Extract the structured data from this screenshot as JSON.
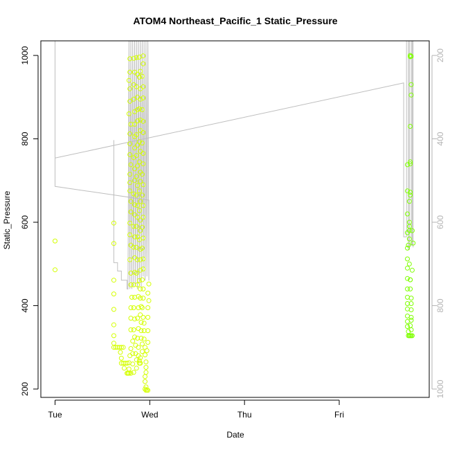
{
  "chart_data": {
    "type": "scatter",
    "title": "ATOM4 Northeast_Pacific_1 Static_Pressure",
    "xlabel": "Date",
    "ylabel": "Static_Pressure",
    "x_tick_labels": [
      "Tue",
      "Wed",
      "Thu",
      "Fri"
    ],
    "x_ticks_days": [
      0,
      1,
      2,
      3
    ],
    "xlim_days": [
      -0.15,
      3.95
    ],
    "ylim": [
      180,
      1035
    ],
    "y_ticks": [
      200,
      400,
      600,
      800,
      1000
    ],
    "y2_ticks": [
      200,
      400,
      600,
      800,
      1000
    ],
    "y2_reversed": true,
    "grid": false,
    "colors": {
      "point_early": "#d4ff00",
      "point_late": "#7fff00",
      "depth_line": "#bebebe",
      "right_axis": "#b3b3b3"
    },
    "series": [
      {
        "points": [
          [
            0.0,
            555
          ],
          [
            0.0,
            486
          ],
          [
            0.62,
            598
          ],
          [
            0.62,
            549
          ],
          [
            0.62,
            461
          ],
          [
            0.62,
            428
          ],
          [
            0.62,
            391
          ],
          [
            0.62,
            354
          ],
          [
            0.62,
            328
          ],
          [
            0.62,
            310
          ],
          [
            0.62,
            300
          ],
          [
            0.64,
            300
          ],
          [
            0.66,
            300
          ],
          [
            0.68,
            300
          ],
          [
            0.7,
            300
          ],
          [
            0.72,
            300
          ],
          [
            0.69,
            288
          ],
          [
            0.7,
            274
          ],
          [
            0.7,
            262
          ],
          [
            0.72,
            262
          ],
          [
            0.74,
            262
          ],
          [
            0.76,
            262
          ],
          [
            0.73,
            250
          ],
          [
            0.76,
            238
          ],
          [
            0.77,
            238
          ],
          [
            0.78,
            238
          ],
          [
            0.8,
            238
          ],
          [
            0.78,
            248
          ],
          [
            0.78,
            263
          ],
          [
            0.79,
            280
          ],
          [
            0.8,
            297
          ],
          [
            0.79,
            992
          ],
          [
            0.79,
            960
          ],
          [
            0.78,
            940
          ],
          [
            0.79,
            920
          ],
          [
            0.79,
            890
          ],
          [
            0.78,
            860
          ],
          [
            0.8,
            835
          ],
          [
            0.79,
            812
          ],
          [
            0.79,
            788
          ],
          [
            0.79,
            762
          ],
          [
            0.8,
            738
          ],
          [
            0.79,
            715
          ],
          [
            0.79,
            695
          ],
          [
            0.79,
            675
          ],
          [
            0.8,
            650
          ],
          [
            0.8,
            625
          ],
          [
            0.79,
            598
          ],
          [
            0.79,
            570
          ],
          [
            0.8,
            545
          ],
          [
            0.79,
            510
          ],
          [
            0.8,
            478
          ],
          [
            0.8,
            450
          ],
          [
            0.81,
            420
          ],
          [
            0.8,
            395
          ],
          [
            0.8,
            370
          ],
          [
            0.8,
            342
          ],
          [
            0.82,
            315
          ],
          [
            0.82,
            285
          ],
          [
            0.82,
            260
          ],
          [
            0.83,
            240
          ],
          [
            0.83,
            993
          ],
          [
            0.84,
            960
          ],
          [
            0.83,
            930
          ],
          [
            0.83,
            895
          ],
          [
            0.84,
            865
          ],
          [
            0.84,
            835
          ],
          [
            0.84,
            805
          ],
          [
            0.84,
            778
          ],
          [
            0.83,
            755
          ],
          [
            0.84,
            728
          ],
          [
            0.84,
            700
          ],
          [
            0.83,
            668
          ],
          [
            0.84,
            642
          ],
          [
            0.84,
            618
          ],
          [
            0.83,
            590
          ],
          [
            0.84,
            565
          ],
          [
            0.83,
            540
          ],
          [
            0.84,
            515
          ],
          [
            0.84,
            480
          ],
          [
            0.83,
            450
          ],
          [
            0.84,
            420
          ],
          [
            0.83,
            395
          ],
          [
            0.84,
            368
          ],
          [
            0.83,
            342
          ],
          [
            0.84,
            325
          ],
          [
            0.85,
            305
          ],
          [
            0.85,
            285
          ],
          [
            0.86,
            270
          ],
          [
            0.86,
            250
          ],
          [
            0.86,
            995
          ],
          [
            0.87,
            955
          ],
          [
            0.86,
            925
          ],
          [
            0.87,
            900
          ],
          [
            0.87,
            870
          ],
          [
            0.87,
            843
          ],
          [
            0.86,
            810
          ],
          [
            0.87,
            785
          ],
          [
            0.86,
            760
          ],
          [
            0.87,
            735
          ],
          [
            0.86,
            710
          ],
          [
            0.87,
            688
          ],
          [
            0.86,
            665
          ],
          [
            0.87,
            640
          ],
          [
            0.87,
            612
          ],
          [
            0.86,
            590
          ],
          [
            0.87,
            565
          ],
          [
            0.86,
            540
          ],
          [
            0.87,
            510
          ],
          [
            0.86,
            478
          ],
          [
            0.87,
            450
          ],
          [
            0.88,
            422
          ],
          [
            0.88,
            395
          ],
          [
            0.87,
            370
          ],
          [
            0.88,
            345
          ],
          [
            0.87,
            322
          ],
          [
            0.88,
            300
          ],
          [
            0.88,
            280
          ],
          [
            0.89,
            268
          ],
          [
            0.89,
            262
          ],
          [
            0.9,
            262
          ],
          [
            0.9,
            275
          ],
          [
            0.89,
            996
          ],
          [
            0.9,
            962
          ],
          [
            0.89,
            948
          ],
          [
            0.9,
            920
          ],
          [
            0.9,
            895
          ],
          [
            0.89,
            872
          ],
          [
            0.9,
            845
          ],
          [
            0.9,
            820
          ],
          [
            0.89,
            793
          ],
          [
            0.9,
            770
          ],
          [
            0.89,
            745
          ],
          [
            0.9,
            720
          ],
          [
            0.9,
            698
          ],
          [
            0.89,
            675
          ],
          [
            0.9,
            650
          ],
          [
            0.89,
            628
          ],
          [
            0.9,
            605
          ],
          [
            0.9,
            580
          ],
          [
            0.89,
            558
          ],
          [
            0.9,
            535
          ],
          [
            0.9,
            510
          ],
          [
            0.9,
            485
          ],
          [
            0.89,
            460
          ],
          [
            0.9,
            440
          ],
          [
            0.9,
            418
          ],
          [
            0.91,
            398
          ],
          [
            0.9,
            378
          ],
          [
            0.91,
            360
          ],
          [
            0.91,
            340
          ],
          [
            0.91,
            322
          ],
          [
            0.92,
            308
          ],
          [
            0.92,
            290
          ],
          [
            0.93,
            999
          ],
          [
            0.93,
            980
          ],
          [
            0.92,
            950
          ],
          [
            0.93,
            925
          ],
          [
            0.93,
            898
          ],
          [
            0.92,
            870
          ],
          [
            0.93,
            842
          ],
          [
            0.93,
            815
          ],
          [
            0.92,
            790
          ],
          [
            0.93,
            765
          ],
          [
            0.93,
            740
          ],
          [
            0.92,
            715
          ],
          [
            0.93,
            690
          ],
          [
            0.92,
            665
          ],
          [
            0.93,
            640
          ],
          [
            0.93,
            612
          ],
          [
            0.92,
            588
          ],
          [
            0.93,
            562
          ],
          [
            0.92,
            538
          ],
          [
            0.93,
            512
          ],
          [
            0.93,
            488
          ],
          [
            0.92,
            462
          ],
          [
            0.93,
            440
          ],
          [
            0.93,
            418
          ],
          [
            0.92,
            395
          ],
          [
            0.93,
            372
          ],
          [
            0.94,
            358
          ],
          [
            0.94,
            340
          ],
          [
            0.94,
            320
          ],
          [
            0.95,
            300
          ],
          [
            0.95,
            282
          ],
          [
            0.96,
            265
          ],
          [
            0.96,
            252
          ],
          [
            0.96,
            240
          ],
          [
            0.95,
            230
          ],
          [
            0.95,
            218
          ],
          [
            0.96,
            205
          ],
          [
            0.95,
            200
          ],
          [
            0.97,
            198
          ],
          [
            0.98,
            197
          ],
          [
            0.96,
            197
          ],
          [
            0.97,
            292
          ],
          [
            0.98,
            312
          ],
          [
            0.98,
            340
          ],
          [
            0.98,
            372
          ],
          [
            0.98,
            395
          ],
          [
            0.99,
            412
          ],
          [
            0.98,
            430
          ],
          [
            0.99,
            452
          ]
        ]
      },
      {
        "points": [
          [
            3.72,
            738
          ],
          [
            3.72,
            675
          ],
          [
            3.72,
            620
          ],
          [
            3.72,
            575
          ],
          [
            3.72,
            538
          ],
          [
            3.72,
            512
          ],
          [
            3.72,
            490
          ],
          [
            3.72,
            465
          ],
          [
            3.72,
            440
          ],
          [
            3.72,
            420
          ],
          [
            3.72,
            405
          ],
          [
            3.72,
            392
          ],
          [
            3.72,
            375
          ],
          [
            3.72,
            362
          ],
          [
            3.72,
            350
          ],
          [
            3.73,
            338
          ],
          [
            3.73,
            328
          ],
          [
            3.74,
            328
          ],
          [
            3.75,
            328
          ],
          [
            3.76,
            328
          ],
          [
            3.77,
            328
          ],
          [
            3.73,
            545
          ],
          [
            3.74,
            560
          ],
          [
            3.74,
            580
          ],
          [
            3.74,
            590
          ],
          [
            3.74,
            600
          ],
          [
            3.74,
            650
          ],
          [
            3.75,
            665
          ],
          [
            3.75,
            672
          ],
          [
            3.75,
            740
          ],
          [
            3.75,
            745
          ],
          [
            3.75,
            830
          ],
          [
            3.76,
            905
          ],
          [
            3.76,
            930
          ],
          [
            3.75,
            1000
          ],
          [
            3.76,
            998
          ],
          [
            3.75,
            997
          ],
          [
            3.74,
            500
          ],
          [
            3.75,
            462
          ],
          [
            3.75,
            462
          ],
          [
            3.75,
            440
          ],
          [
            3.76,
            418
          ],
          [
            3.76,
            405
          ],
          [
            3.76,
            390
          ],
          [
            3.76,
            372
          ],
          [
            3.76,
            365
          ],
          [
            3.75,
            352
          ],
          [
            3.76,
            342
          ],
          [
            3.77,
            485
          ],
          [
            3.78,
            550
          ],
          [
            3.77,
            580
          ]
        ]
      }
    ],
    "depth_track": {
      "points": [
        [
          0.0,
          1035
        ],
        [
          0.0,
          754
        ],
        [
          0.0,
          685
        ],
        [
          0.0,
          686
        ],
        [
          0.99,
          653
        ],
        [
          0.99,
          460
        ],
        [
          0.98,
          1035
        ],
        [
          0.97,
          470
        ],
        [
          0.96,
          1035
        ],
        [
          0.95,
          460
        ],
        [
          0.94,
          1035
        ],
        [
          0.93,
          470
        ],
        [
          0.92,
          1035
        ],
        [
          0.91,
          440
        ],
        [
          0.9,
          1035
        ],
        [
          0.89,
          455
        ],
        [
          0.88,
          1035
        ],
        [
          0.87,
          440
        ],
        [
          0.86,
          1035
        ],
        [
          0.85,
          450
        ],
        [
          0.84,
          1035
        ],
        [
          0.83,
          445
        ],
        [
          0.82,
          1035
        ],
        [
          0.81,
          440
        ],
        [
          0.8,
          1035
        ],
        [
          0.79,
          440
        ],
        [
          0.78,
          1035
        ],
        [
          0.77,
          440
        ],
        [
          0.76,
          440
        ],
        [
          0.76,
          461
        ],
        [
          0.7,
          461
        ],
        [
          0.7,
          483
        ],
        [
          0.66,
          483
        ],
        [
          0.66,
          503
        ],
        [
          0.62,
          503
        ],
        [
          0.62,
          797
        ]
      ],
      "top_edge": [
        [
          0.0,
          754
        ],
        [
          3.68,
          934
        ],
        [
          3.68,
          565
        ],
        [
          3.71,
          565
        ],
        [
          3.71,
          1035
        ]
      ],
      "end_spikes": [
        [
          3.73,
          1035
        ],
        [
          3.73,
          535
        ],
        [
          3.74,
          535
        ],
        [
          3.74,
          1035
        ],
        [
          3.76,
          1035
        ],
        [
          3.76,
          545
        ],
        [
          3.77,
          545
        ],
        [
          3.77,
          1035
        ],
        [
          3.78,
          1035
        ],
        [
          3.78,
          540
        ]
      ]
    }
  }
}
